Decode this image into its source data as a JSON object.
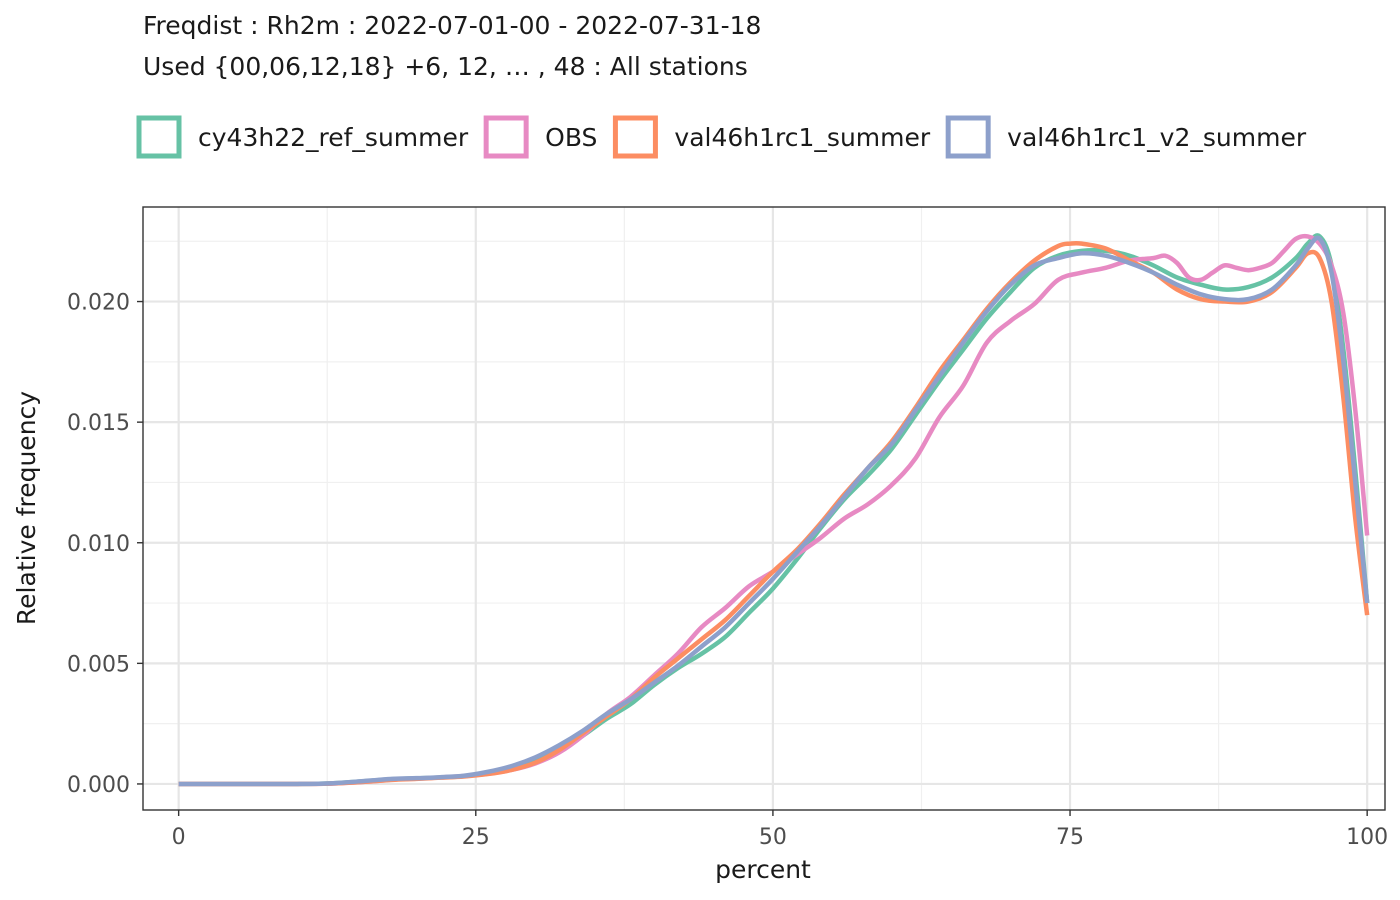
{
  "chart_data": {
    "type": "line",
    "title": "Freqdist : Rh2m : 2022-07-01-00 - 2022-07-31-18",
    "subtitle": "Used {00,06,12,18} +6, 12, … , 48 : All stations",
    "xlabel": "percent",
    "ylabel": "Relative frequency",
    "xlim": [
      -3,
      101.5
    ],
    "ylim": [
      -0.00108,
      0.02392
    ],
    "x_ticks": [
      0,
      25,
      50,
      75,
      100
    ],
    "x_tick_labels": [
      "0",
      "25",
      "50",
      "75",
      "100"
    ],
    "y_ticks": [
      0.0,
      0.005,
      0.01,
      0.015,
      0.02
    ],
    "y_tick_labels": [
      "0.000",
      "0.005",
      "0.010",
      "0.015",
      "0.020"
    ],
    "grid": true,
    "legend_position": "top",
    "series": [
      {
        "name": "cy43h22_ref_summer",
        "color": "#66c2a5",
        "x": [
          0,
          5,
          10,
          13,
          16,
          18,
          20,
          22,
          24,
          26,
          28,
          30,
          32,
          34,
          36,
          38,
          40,
          42,
          44,
          46,
          48,
          50,
          52,
          54,
          56,
          58,
          60,
          62,
          64,
          66,
          68,
          70,
          72,
          74,
          76,
          78,
          80,
          82,
          84,
          86,
          88,
          90,
          92,
          94,
          95,
          96,
          97,
          98,
          99,
          100
        ],
        "y": [
          0.0,
          0.0,
          0.0,
          3e-05,
          0.00013,
          0.0002,
          0.00023,
          0.00027,
          0.00032,
          0.00045,
          0.00067,
          0.00095,
          0.0014,
          0.002,
          0.0027,
          0.0033,
          0.0041,
          0.0048,
          0.0054,
          0.0061,
          0.0071,
          0.0081,
          0.0093,
          0.0106,
          0.0118,
          0.0128,
          0.0139,
          0.0153,
          0.0167,
          0.018,
          0.0193,
          0.0204,
          0.0214,
          0.0219,
          0.0221,
          0.0221,
          0.0219,
          0.0215,
          0.021,
          0.0207,
          0.0205,
          0.0206,
          0.021,
          0.0218,
          0.0224,
          0.0227,
          0.0215,
          0.018,
          0.013,
          0.0075
        ]
      },
      {
        "name": "OBS",
        "color": "#e78ac3",
        "x": [
          0,
          5,
          10,
          13,
          16,
          18,
          20,
          22,
          24,
          26,
          28,
          30,
          32,
          34,
          36,
          38,
          40,
          42,
          44,
          46,
          48,
          50,
          52,
          54,
          56,
          58,
          60,
          62,
          64,
          66,
          68,
          70,
          72,
          74,
          76,
          78,
          80,
          82,
          83,
          84,
          85,
          86,
          87,
          88,
          89,
          90,
          91,
          92,
          93,
          94,
          95,
          96,
          97,
          98,
          99,
          100
        ],
        "y": [
          0.0,
          0.0,
          0.0,
          2e-05,
          0.0001,
          0.00018,
          0.00022,
          0.00027,
          0.00033,
          0.00042,
          0.00058,
          0.00085,
          0.0013,
          0.002,
          0.0029,
          0.0036,
          0.0045,
          0.0054,
          0.0065,
          0.0073,
          0.0082,
          0.0088,
          0.0095,
          0.0102,
          0.011,
          0.0116,
          0.0124,
          0.0135,
          0.0152,
          0.0165,
          0.0183,
          0.0192,
          0.0199,
          0.0209,
          0.0212,
          0.0214,
          0.0217,
          0.0218,
          0.0219,
          0.0216,
          0.021,
          0.0209,
          0.0212,
          0.0215,
          0.0214,
          0.0213,
          0.0214,
          0.0216,
          0.0221,
          0.0226,
          0.0227,
          0.0224,
          0.0215,
          0.0195,
          0.0155,
          0.0103
        ]
      },
      {
        "name": "val46h1rc1_summer",
        "color": "#fc8d62",
        "x": [
          0,
          5,
          10,
          13,
          16,
          18,
          20,
          22,
          24,
          26,
          28,
          30,
          32,
          34,
          36,
          38,
          40,
          42,
          44,
          46,
          48,
          50,
          52,
          54,
          56,
          58,
          60,
          62,
          64,
          66,
          68,
          70,
          72,
          74,
          75,
          76,
          78,
          80,
          82,
          84,
          86,
          88,
          90,
          92,
          94,
          95,
          96,
          97,
          98,
          99,
          100
        ],
        "y": [
          0.0,
          0.0,
          0.0,
          2e-05,
          0.0001,
          0.00017,
          0.00021,
          0.00026,
          0.00031,
          0.00041,
          0.00058,
          0.00088,
          0.0014,
          0.0021,
          0.0028,
          0.0035,
          0.0044,
          0.0052,
          0.006,
          0.0068,
          0.0078,
          0.0088,
          0.0097,
          0.0108,
          0.012,
          0.0131,
          0.0142,
          0.0156,
          0.0171,
          0.0184,
          0.0197,
          0.0208,
          0.0217,
          0.0223,
          0.0224,
          0.0224,
          0.0222,
          0.0217,
          0.0212,
          0.0205,
          0.0201,
          0.02,
          0.02,
          0.0204,
          0.0214,
          0.022,
          0.0218,
          0.02,
          0.016,
          0.011,
          0.007
        ]
      },
      {
        "name": "val46h1rc1_v2_summer",
        "color": "#8da0cb",
        "x": [
          0,
          5,
          10,
          13,
          16,
          18,
          20,
          22,
          24,
          26,
          28,
          30,
          32,
          34,
          36,
          38,
          40,
          42,
          44,
          46,
          48,
          50,
          52,
          54,
          56,
          58,
          60,
          62,
          64,
          66,
          68,
          70,
          72,
          74,
          76,
          78,
          80,
          82,
          84,
          86,
          88,
          90,
          92,
          94,
          95,
          96,
          97,
          98,
          99,
          100
        ],
        "y": [
          0.0,
          0.0,
          0.0,
          3e-05,
          0.00014,
          0.00021,
          0.00024,
          0.00028,
          0.00034,
          0.0005,
          0.00074,
          0.0011,
          0.0016,
          0.0022,
          0.0029,
          0.0035,
          0.0042,
          0.0049,
          0.0057,
          0.0065,
          0.0075,
          0.0085,
          0.0096,
          0.0107,
          0.0119,
          0.0131,
          0.0141,
          0.0155,
          0.0169,
          0.0183,
          0.0196,
          0.0207,
          0.0215,
          0.0218,
          0.022,
          0.0219,
          0.0216,
          0.0212,
          0.0207,
          0.0203,
          0.0201,
          0.0201,
          0.0205,
          0.0215,
          0.0222,
          0.0226,
          0.0212,
          0.0175,
          0.0125,
          0.0075
        ]
      }
    ]
  }
}
